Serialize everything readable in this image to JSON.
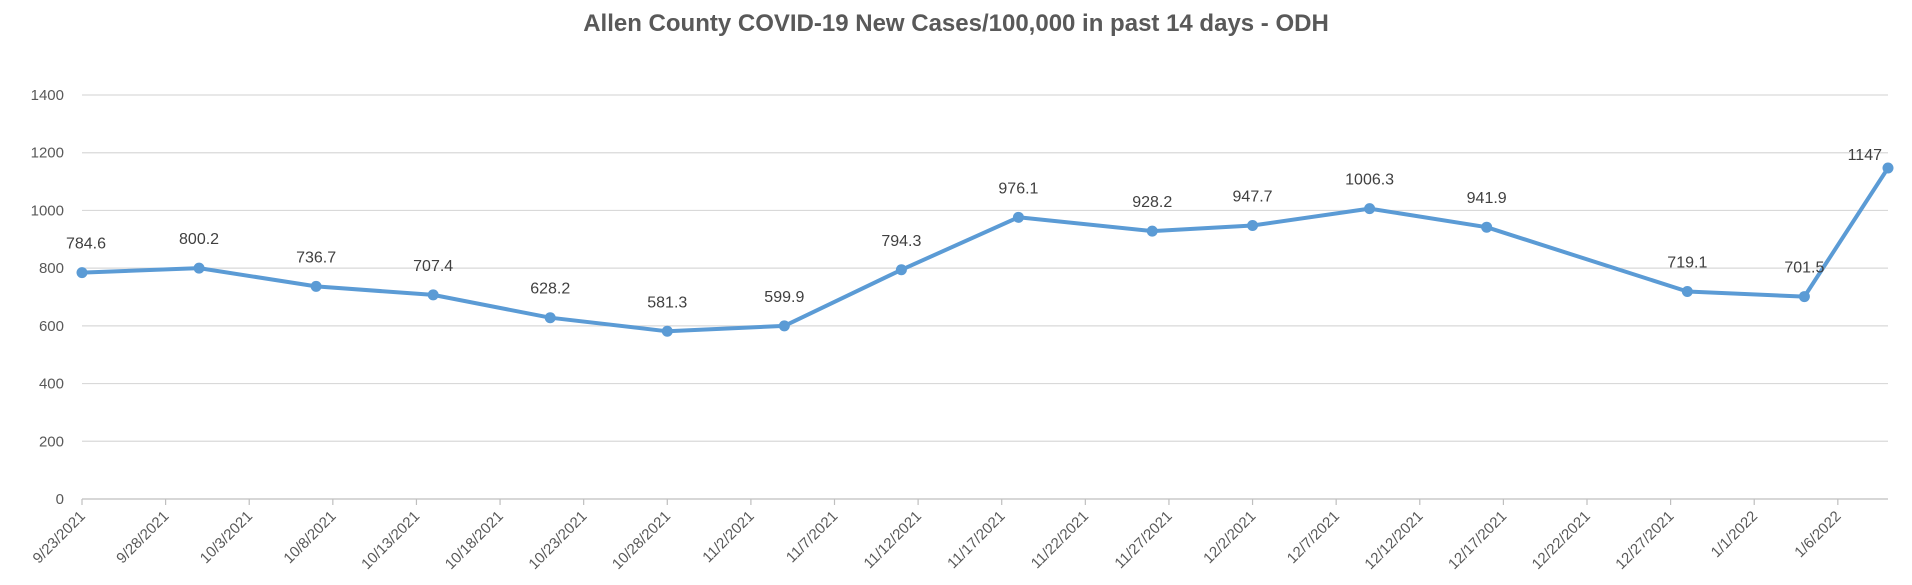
{
  "chart_data": {
    "type": "line",
    "title": "Allen County COVID-19 New Cases/100,000 in past 14 days - ODH",
    "xlabel": "",
    "ylabel": "",
    "ylim": [
      0,
      1400
    ],
    "yticks": [
      0,
      200,
      400,
      600,
      800,
      1000,
      1200,
      1400
    ],
    "xrange": [
      "9/23/2021",
      "1/9/2022"
    ],
    "xticks": [
      "9/23/2021",
      "9/28/2021",
      "10/3/2021",
      "10/8/2021",
      "10/13/2021",
      "10/18/2021",
      "10/23/2021",
      "10/28/2021",
      "11/2/2021",
      "11/7/2021",
      "11/12/2021",
      "11/17/2021",
      "11/22/2021",
      "11/27/2021",
      "12/2/2021",
      "12/7/2021",
      "12/12/2021",
      "12/17/2021",
      "12/22/2021",
      "12/27/2021",
      "1/1/2022",
      "1/6/2022"
    ],
    "grid": true,
    "legend": "none",
    "series": [
      {
        "color": "#5b9bd5",
        "points": [
          {
            "x": "9/23/2021",
            "y": 784.6,
            "label": "784.6"
          },
          {
            "x": "9/30/2021",
            "y": 800.2,
            "label": "800.2"
          },
          {
            "x": "10/7/2021",
            "y": 736.7,
            "label": "736.7"
          },
          {
            "x": "10/14/2021",
            "y": 707.4,
            "label": "707.4"
          },
          {
            "x": "10/21/2021",
            "y": 628.2,
            "label": "628.2"
          },
          {
            "x": "10/28/2021",
            "y": 581.3,
            "label": "581.3"
          },
          {
            "x": "11/4/2021",
            "y": 599.9,
            "label": "599.9"
          },
          {
            "x": "11/11/2021",
            "y": 794.3,
            "label": "794.3"
          },
          {
            "x": "11/18/2021",
            "y": 976.1,
            "label": "976.1"
          },
          {
            "x": "11/26/2021",
            "y": 928.2,
            "label": "928.2"
          },
          {
            "x": "12/2/2021",
            "y": 947.7,
            "label": "947.7"
          },
          {
            "x": "12/9/2021",
            "y": 1006.3,
            "label": "1006.3"
          },
          {
            "x": "12/16/2021",
            "y": 941.9,
            "label": "941.9"
          },
          {
            "x": "12/28/2021",
            "y": 719.1,
            "label": "719.1"
          },
          {
            "x": "1/4/2022",
            "y": 701.5,
            "label": "701.5"
          },
          {
            "x": "1/9/2022",
            "y": 1147,
            "label": "1147"
          }
        ]
      }
    ]
  }
}
